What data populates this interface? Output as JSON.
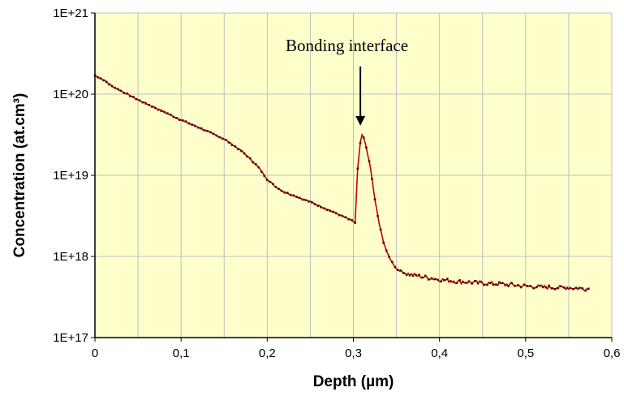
{
  "chart_data": {
    "type": "line",
    "xlabel": "Depth (µm)",
    "ylabel": "Concentration (at.cm³)",
    "xlim": [
      0,
      0.6
    ],
    "ylim": [
      1e+17,
      1e+21
    ],
    "y_scale": "log",
    "grid": true,
    "legend": "none",
    "colors": {
      "plot_background": "#FFFFCC",
      "series": "#C00000",
      "markers": "#5A0000",
      "grid": "#BFBFBF"
    },
    "x_ticks": [
      "0",
      "0,1",
      "0,2",
      "0,3",
      "0,4",
      "0,5",
      "0,6"
    ],
    "y_ticks": [
      "1E+17",
      "1E+18",
      "1E+19",
      "1E+20",
      "1E+21"
    ],
    "series": [
      {
        "x": [
          0,
          0.01,
          0.02,
          0.03,
          0.05,
          0.07,
          0.1,
          0.12,
          0.15,
          0.17,
          0.18,
          0.19,
          0.2,
          0.21,
          0.22,
          0.25,
          0.28,
          0.3,
          0.302,
          0.305,
          0.308,
          0.31,
          0.312,
          0.315,
          0.32,
          0.325,
          0.33,
          0.335,
          0.34,
          0.345,
          0.35,
          0.36,
          0.38,
          0.4,
          0.42,
          0.45,
          0.48,
          0.5,
          0.52,
          0.55,
          0.573
        ],
        "y": [
          1.7e+20,
          1.5e+20,
          1.25e+20,
          1.1e+20,
          8.5e+19,
          6.8e+19,
          4.8e+19,
          3.9e+19,
          2.8e+19,
          2e+19,
          1.6e+19,
          1.25e+19,
          8.9e+18,
          7.2e+18,
          6.2e+18,
          4.7e+18,
          3.4e+18,
          2.7e+18,
          2.6e+18,
          1.2e+19,
          2.5e+19,
          3.1e+19,
          2.9e+19,
          2.2e+19,
          1.2e+19,
          5e+18,
          2.5e+18,
          1.5e+18,
          1.05e+18,
          8.5e+17,
          7e+17,
          6.2e+17,
          5.6e+17,
          5.2e+17,
          4.9e+17,
          4.7e+17,
          4.5e+17,
          4.3e+17,
          4.2e+17,
          4.1e+17,
          4e+17
        ]
      }
    ],
    "annotations": [
      {
        "text": "Bonding interface",
        "x": 0.31,
        "y": 3.1e+19
      }
    ]
  }
}
